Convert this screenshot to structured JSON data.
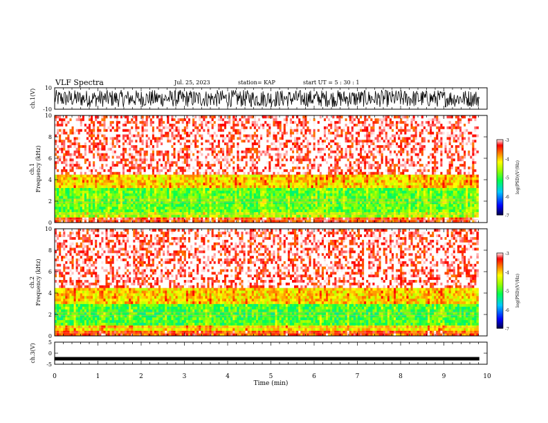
{
  "header": {
    "title": "VLF Spectra",
    "date": "Jul. 25, 2023",
    "station": "station= KAP",
    "start_ut": "start  UT =   5 : 30 : 1"
  },
  "colorbar_label": "log(PSD)(V²/Hz)",
  "chart_data": [
    {
      "type": "line",
      "panel": "ch1-waveform",
      "ylabel": "ch.1(V)",
      "ylim": [
        -10,
        10
      ],
      "yticks": [
        "10",
        "-10"
      ],
      "xlim": [
        0,
        10
      ],
      "note_amplitude": [
        -8,
        8
      ],
      "color": "#000000"
    },
    {
      "type": "heatmap",
      "panel": "ch1-spectrogram",
      "ylabel": "ch.1 Frequency (kHz)",
      "ylim": [
        0,
        10
      ],
      "yticks": [
        "0",
        "2",
        "4",
        "6",
        "8",
        "10"
      ],
      "xlim": [
        0,
        10
      ],
      "data_end_min": 9.8,
      "colorbar": {
        "range": [
          -7,
          -3
        ],
        "ticks": [
          "-3",
          "-4",
          "-5",
          "-6",
          "-7"
        ]
      },
      "bands": [
        {
          "from_khz": 0.0,
          "to_khz": 0.5,
          "log_psd": -3.5
        },
        {
          "from_khz": 0.5,
          "to_khz": 1.0,
          "log_psd": -4.6
        },
        {
          "from_khz": 1.0,
          "to_khz": 3.2,
          "log_psd": -4.9
        },
        {
          "from_khz": 3.2,
          "to_khz": 4.5,
          "log_psd": -4.1
        },
        {
          "from_khz": 4.5,
          "to_khz": 10.0,
          "log_psd": -3.3
        }
      ]
    },
    {
      "type": "heatmap",
      "panel": "ch2-spectrogram",
      "ylabel": "ch.2 Frequency (kHz)",
      "ylim": [
        0,
        10
      ],
      "yticks": [
        "0",
        "2",
        "4",
        "6",
        "8",
        "10"
      ],
      "xlim": [
        0,
        10
      ],
      "data_end_min": 9.8,
      "colorbar": {
        "range": [
          -7,
          -3
        ],
        "ticks": [
          "-3",
          "-4",
          "-5",
          "-6",
          "-7"
        ]
      },
      "bands": [
        {
          "from_khz": 0.0,
          "to_khz": 0.5,
          "log_psd": -3.6
        },
        {
          "from_khz": 0.5,
          "to_khz": 1.0,
          "log_psd": -4.2
        },
        {
          "from_khz": 1.0,
          "to_khz": 3.0,
          "log_psd": -5.0
        },
        {
          "from_khz": 3.0,
          "to_khz": 4.5,
          "log_psd": -4.1
        },
        {
          "from_khz": 4.5,
          "to_khz": 10.0,
          "log_psd": -3.3
        }
      ]
    },
    {
      "type": "line",
      "panel": "ch3-waveform",
      "ylabel": "ch.3(V)",
      "ylim": [
        -5,
        5
      ],
      "yticks": [
        "5",
        "0",
        "-5"
      ],
      "xlim": [
        0,
        10
      ],
      "xlabel": "Time (min)",
      "xticks": [
        "0",
        "1",
        "2",
        "3",
        "4",
        "5",
        "6",
        "7",
        "8",
        "9",
        "10"
      ],
      "level": -2.5,
      "color": "#000000"
    }
  ]
}
